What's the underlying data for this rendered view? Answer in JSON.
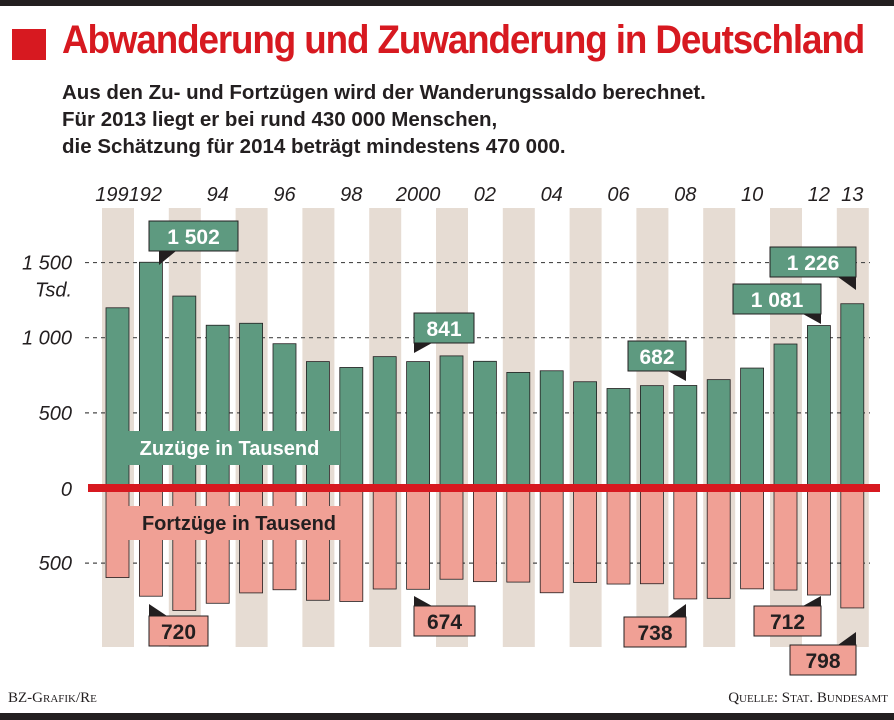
{
  "title": "Abwanderung und Zuwanderung in Deutschland",
  "subtitle": [
    "Aus den Zu- und Fortzügen wird der Wanderungssaldo berechnet.",
    "Für 2013 liegt er bei rund 430 000 Menschen,",
    "die Schätzung für 2014 beträgt mindestens 470 000."
  ],
  "footer": {
    "credit": "BZ-Grafik/Re",
    "source": "Quelle: Stat. Bundesamt"
  },
  "colors": {
    "accent": "#d71920",
    "inflow": "#5e9a80",
    "outflow": "#f0a095",
    "band": "#e6dcd3",
    "text": "#231f20"
  },
  "chart_data": {
    "type": "bar",
    "categories": [
      "1991",
      "92",
      "93",
      "94",
      "95",
      "96",
      "97",
      "98",
      "99",
      "2000",
      "01",
      "02",
      "03",
      "04",
      "05",
      "06",
      "07",
      "08",
      "09",
      "10",
      "11",
      "12",
      "13"
    ],
    "x_tick_labels": [
      "1991",
      "92",
      "",
      "94",
      "",
      "96",
      "",
      "98",
      "",
      "2000",
      "",
      "02",
      "",
      "04",
      "",
      "06",
      "",
      "08",
      "",
      "10",
      "",
      "12",
      "13"
    ],
    "series": [
      {
        "name": "Zuzüge in Tausend",
        "values": [
          1199,
          1502,
          1277,
          1083,
          1096,
          960,
          841,
          802,
          874,
          841,
          879,
          843,
          769,
          780,
          707,
          662,
          681,
          682,
          721,
          798,
          958,
          1081,
          1226
        ]
      },
      {
        "name": "Fortzüge in Tausend",
        "values": [
          596,
          720,
          815,
          767,
          698,
          677,
          747,
          755,
          672,
          674,
          607,
          623,
          626,
          697,
          629,
          639,
          637,
          738,
          734,
          671,
          679,
          712,
          798
        ]
      }
    ],
    "y_tick_labels": [
      "1 500",
      "Tsd.",
      "1 000",
      "500",
      "0",
      "500"
    ],
    "ylim": [
      -800,
      1700
    ],
    "callouts": [
      {
        "index": 1,
        "series": 0,
        "text": "1 502"
      },
      {
        "index": 9,
        "series": 0,
        "text": "841"
      },
      {
        "index": 17,
        "series": 0,
        "text": "682"
      },
      {
        "index": 21,
        "series": 0,
        "text": "1 081"
      },
      {
        "index": 22,
        "series": 0,
        "text": "1 226"
      },
      {
        "index": 1,
        "series": 1,
        "text": "720"
      },
      {
        "index": 9,
        "series": 1,
        "text": "674"
      },
      {
        "index": 17,
        "series": 1,
        "text": "738"
      },
      {
        "index": 21,
        "series": 1,
        "text": "712"
      },
      {
        "index": 22,
        "series": 1,
        "text": "798"
      }
    ]
  }
}
